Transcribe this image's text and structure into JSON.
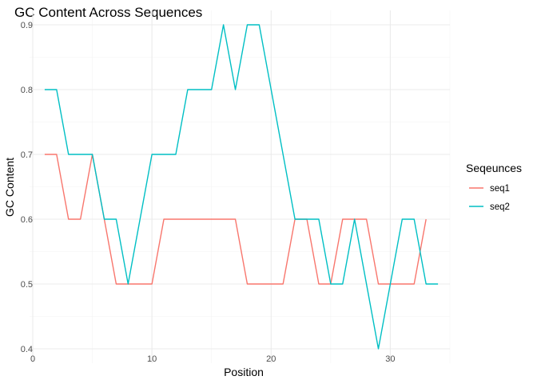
{
  "chart_data": {
    "type": "line",
    "title": "GC Content Across Sequences",
    "xlabel": "Position",
    "ylabel": "GC Content",
    "xlim": [
      0,
      35
    ],
    "ylim": [
      0.4,
      0.9
    ],
    "x_ticks": [
      0,
      10,
      20,
      30
    ],
    "y_ticks": [
      0.4,
      0.5,
      0.6,
      0.7,
      0.8,
      0.9
    ],
    "grid": true,
    "legend": {
      "title": "Seqeunces",
      "placement": "right"
    },
    "series": [
      {
        "name": "seq1",
        "color": "#F8766D",
        "x": [
          1,
          2,
          3,
          4,
          5,
          6,
          7,
          8,
          9,
          10,
          11,
          12,
          13,
          14,
          15,
          16,
          17,
          18,
          19,
          20,
          21,
          22,
          23,
          24,
          25,
          26,
          27,
          28,
          29,
          30,
          31,
          32,
          33
        ],
        "values": [
          0.7,
          0.7,
          0.6,
          0.6,
          0.7,
          0.6,
          0.5,
          0.5,
          0.5,
          0.5,
          0.6,
          0.6,
          0.6,
          0.6,
          0.6,
          0.6,
          0.6,
          0.5,
          0.5,
          0.5,
          0.5,
          0.6,
          0.6,
          0.5,
          0.5,
          0.6,
          0.6,
          0.6,
          0.5,
          0.5,
          0.5,
          0.5,
          0.6
        ]
      },
      {
        "name": "seq2",
        "color": "#00BFC4",
        "x": [
          1,
          2,
          3,
          4,
          5,
          6,
          7,
          8,
          9,
          10,
          11,
          12,
          13,
          14,
          15,
          16,
          17,
          18,
          19,
          20,
          21,
          22,
          23,
          24,
          25,
          26,
          27,
          28,
          29,
          30,
          31,
          32,
          33,
          34
        ],
        "values": [
          0.8,
          0.8,
          0.7,
          0.7,
          0.7,
          0.6,
          0.6,
          0.5,
          0.6,
          0.7,
          0.7,
          0.7,
          0.8,
          0.8,
          0.8,
          0.9,
          0.8,
          0.9,
          0.9,
          0.8,
          0.7,
          0.6,
          0.6,
          0.6,
          0.5,
          0.5,
          0.6,
          0.5,
          0.4,
          0.5,
          0.6,
          0.6,
          0.5,
          0.5
        ]
      }
    ]
  }
}
